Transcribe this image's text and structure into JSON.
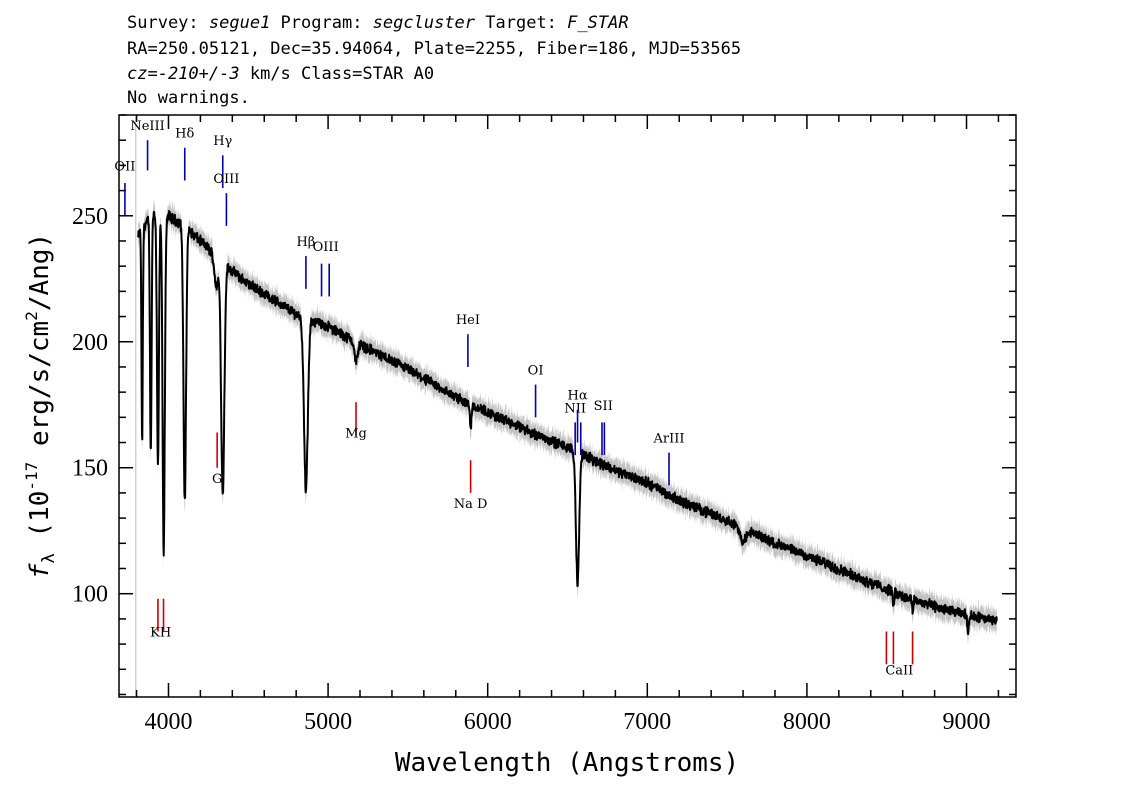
{
  "header": {
    "line1": {
      "survey_label": "Survey: ",
      "survey": "segue1",
      "program_label": " Program: ",
      "program": "segcluster",
      "target_label": " Target: ",
      "target": "F_STAR"
    },
    "line2": "RA=250.05121, Dec=35.94064, Plate=2255, Fiber=186, MJD=53565",
    "line3": {
      "cz": "cz=-210+/-3",
      "rest": " km/s Class=STAR A0"
    },
    "line4": "No warnings."
  },
  "chart_data": {
    "type": "line",
    "xlabel": "Wavelength (Angstroms)",
    "ylabel": {
      "pre": "f",
      "sub": "λ",
      "mid": " (10",
      "sup1": "-17",
      "mid2": " erg/s/cm",
      "sup2": "2",
      "post": "/Ang)"
    },
    "xlim": [
      3690,
      9310
    ],
    "ylim": [
      59,
      290
    ],
    "x_ticks": [
      4000,
      5000,
      6000,
      7000,
      8000,
      9000
    ],
    "x_tick_labels": [
      "4000",
      "5000",
      "6000",
      "7000",
      "8000",
      "9000"
    ],
    "y_ticks": [
      100,
      150,
      200,
      250
    ],
    "y_tick_labels": [
      "100",
      "150",
      "200",
      "250"
    ],
    "grid": false,
    "spectrum": {
      "x_start": 3810,
      "x_end": 9190,
      "continuum": [
        [
          3810,
          242
        ],
        [
          3900,
          251
        ],
        [
          4000,
          250
        ],
        [
          4100,
          246
        ],
        [
          4200,
          240
        ],
        [
          4300,
          234
        ],
        [
          4400,
          228
        ],
        [
          4500,
          223
        ],
        [
          4600,
          219
        ],
        [
          4700,
          215
        ],
        [
          4800,
          211
        ],
        [
          5000,
          206
        ],
        [
          5200,
          199
        ],
        [
          5500,
          189
        ],
        [
          5800,
          178
        ],
        [
          6000,
          172
        ],
        [
          6200,
          166
        ],
        [
          6500,
          158
        ],
        [
          6800,
          149
        ],
        [
          7000,
          144
        ],
        [
          7200,
          137
        ],
        [
          7500,
          129
        ],
        [
          7800,
          120
        ],
        [
          8000,
          115
        ],
        [
          8300,
          107
        ],
        [
          8600,
          99
        ],
        [
          8900,
          93
        ],
        [
          9190,
          89
        ]
      ],
      "absorption": [
        {
          "center": 3798,
          "depth": 70,
          "width": 4
        },
        {
          "center": 3835,
          "depth": 85,
          "width": 4
        },
        {
          "center": 3889,
          "depth": 95,
          "width": 5
        },
        {
          "center": 3934,
          "depth": 100,
          "width": 6
        },
        {
          "center": 3970,
          "depth": 135,
          "width": 7
        },
        {
          "center": 4102,
          "depth": 110,
          "width": 8
        },
        {
          "center": 4300,
          "depth": 12,
          "width": 12
        },
        {
          "center": 4340,
          "depth": 92,
          "width": 10
        },
        {
          "center": 4861,
          "depth": 68,
          "width": 12
        },
        {
          "center": 5175,
          "depth": 8,
          "width": 10
        },
        {
          "center": 5893,
          "depth": 9,
          "width": 5
        },
        {
          "center": 6563,
          "depth": 52,
          "width": 10
        },
        {
          "center": 7600,
          "depth": 5,
          "width": 20
        },
        {
          "center": 8542,
          "depth": 5,
          "width": 4
        },
        {
          "center": 8662,
          "depth": 5,
          "width": 4
        },
        {
          "center": 9010,
          "depth": 6,
          "width": 5
        }
      ],
      "line_color": "#000000",
      "error_color": "#bdbdbd"
    },
    "left_edge_line": {
      "x": 3795,
      "color": "#c8c8c8"
    },
    "emission_lines": [
      {
        "label": "OII",
        "wl": 3727,
        "lines": [
          3727
        ],
        "y_label": 268,
        "y_top": 263,
        "y_bottom": 250
      },
      {
        "label": "NeIII",
        "wl": 3869,
        "lines": [
          3869
        ],
        "y_label": 284,
        "y_top": 280,
        "y_bottom": 268
      },
      {
        "label": "Hδ",
        "wl": 4102,
        "lines": [
          4102
        ],
        "y_label": 281,
        "y_top": 277,
        "y_bottom": 264
      },
      {
        "label": "Hγ",
        "wl": 4340,
        "lines": [
          4340
        ],
        "y_label": 278,
        "y_top": 274,
        "y_bottom": 261
      },
      {
        "label": "OIII",
        "wl": 4363,
        "lines": [
          4363
        ],
        "y_label": 263,
        "y_top": 259,
        "y_bottom": 246
      },
      {
        "label": "Hβ",
        "wl": 4861,
        "lines": [
          4861
        ],
        "y_label": 238,
        "y_top": 234,
        "y_bottom": 221
      },
      {
        "label": "OIII",
        "wl": 4985,
        "lines": [
          4959,
          5007
        ],
        "y_label": 236,
        "y_top": 231,
        "y_bottom": 218
      },
      {
        "label": "HeI",
        "wl": 5876,
        "lines": [
          5876
        ],
        "y_label": 207,
        "y_top": 203,
        "y_bottom": 190
      },
      {
        "label": "OI",
        "wl": 6300,
        "lines": [
          6300
        ],
        "y_label": 187,
        "y_top": 183,
        "y_bottom": 170
      },
      {
        "label": "NII",
        "wl": 6548,
        "lines": [
          6548,
          6583
        ],
        "y_label": 172,
        "y_top": 168,
        "y_bottom": 155
      },
      {
        "label": "Hα",
        "wl": 6563,
        "lines": [
          6563
        ],
        "y_label": 177,
        "y_top": 173,
        "y_bottom": 160
      },
      {
        "label": "SII",
        "wl": 6724,
        "lines": [
          6716,
          6731
        ],
        "y_label": 173,
        "y_top": 168,
        "y_bottom": 155
      },
      {
        "label": "ArIII",
        "wl": 7136,
        "lines": [
          7136
        ],
        "y_label": 160,
        "y_top": 156,
        "y_bottom": 143
      }
    ],
    "absorption_labels": [
      {
        "label": "KH",
        "wl": 3951,
        "lines": [
          3934,
          3969
        ],
        "y_label": 83,
        "y_top": 98,
        "y_bottom": 85
      },
      {
        "label": "G",
        "wl": 4305,
        "lines": [
          4305
        ],
        "y_label": 144,
        "y_top": 164,
        "y_bottom": 150
      },
      {
        "label": "Mg",
        "wl": 5175,
        "lines": [
          5175
        ],
        "y_label": 162,
        "y_top": 176,
        "y_bottom": 163
      },
      {
        "label": "Na D",
        "wl": 5893,
        "lines": [
          5893
        ],
        "y_label": 134,
        "y_top": 153,
        "y_bottom": 140
      },
      {
        "label": "CaII",
        "wl": 8579,
        "lines": [
          8498,
          8542,
          8662
        ],
        "y_label": 68,
        "y_top": 85,
        "y_bottom": 72
      }
    ],
    "emission_color": "#0000b0",
    "absorption_color": "#d00000"
  }
}
